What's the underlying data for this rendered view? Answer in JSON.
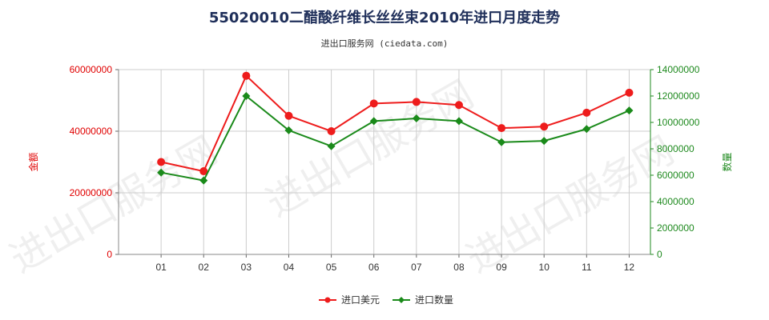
{
  "chart_data": {
    "type": "line",
    "title": "55020010二醋酸纤维长丝丝束2010年进口月度走势",
    "subtitle": "进出口服务网 (ciedata.com)",
    "categories": [
      "01",
      "02",
      "03",
      "04",
      "05",
      "06",
      "07",
      "08",
      "09",
      "10",
      "11",
      "12"
    ],
    "y_left": {
      "label": "金额",
      "range": [
        0,
        60000000
      ],
      "ticks": [
        "0",
        "20000000",
        "40000000",
        "60000000"
      ],
      "tick_values": [
        0,
        20000000,
        40000000,
        60000000
      ],
      "color": "#e00000"
    },
    "y_right": {
      "label": "数量",
      "range": [
        0,
        14000000
      ],
      "ticks": [
        "0",
        "2000000",
        "4000000",
        "6000000",
        "8000000",
        "10000000",
        "12000000",
        "14000000"
      ],
      "tick_values": [
        0,
        2000000,
        4000000,
        6000000,
        8000000,
        10000000,
        12000000,
        14000000
      ],
      "color": "#1f8a1f"
    },
    "series": [
      {
        "name": "进口美元",
        "axis": "left",
        "color": "#ee1c1c",
        "marker": "circle",
        "values": [
          30000000,
          27000000,
          58000000,
          45000000,
          40000000,
          49000000,
          49500000,
          48500000,
          41000000,
          41500000,
          46000000,
          52500000
        ]
      },
      {
        "name": "进口数量",
        "axis": "right",
        "color": "#1a8a1a",
        "marker": "diamond",
        "values": [
          6200000,
          5600000,
          12000000,
          9400000,
          8200000,
          10100000,
          10300000,
          10100000,
          8500000,
          8600000,
          9500000,
          10900000
        ]
      }
    ],
    "grid": true,
    "legend_position": "bottom"
  },
  "watermark": "进出口服务网"
}
